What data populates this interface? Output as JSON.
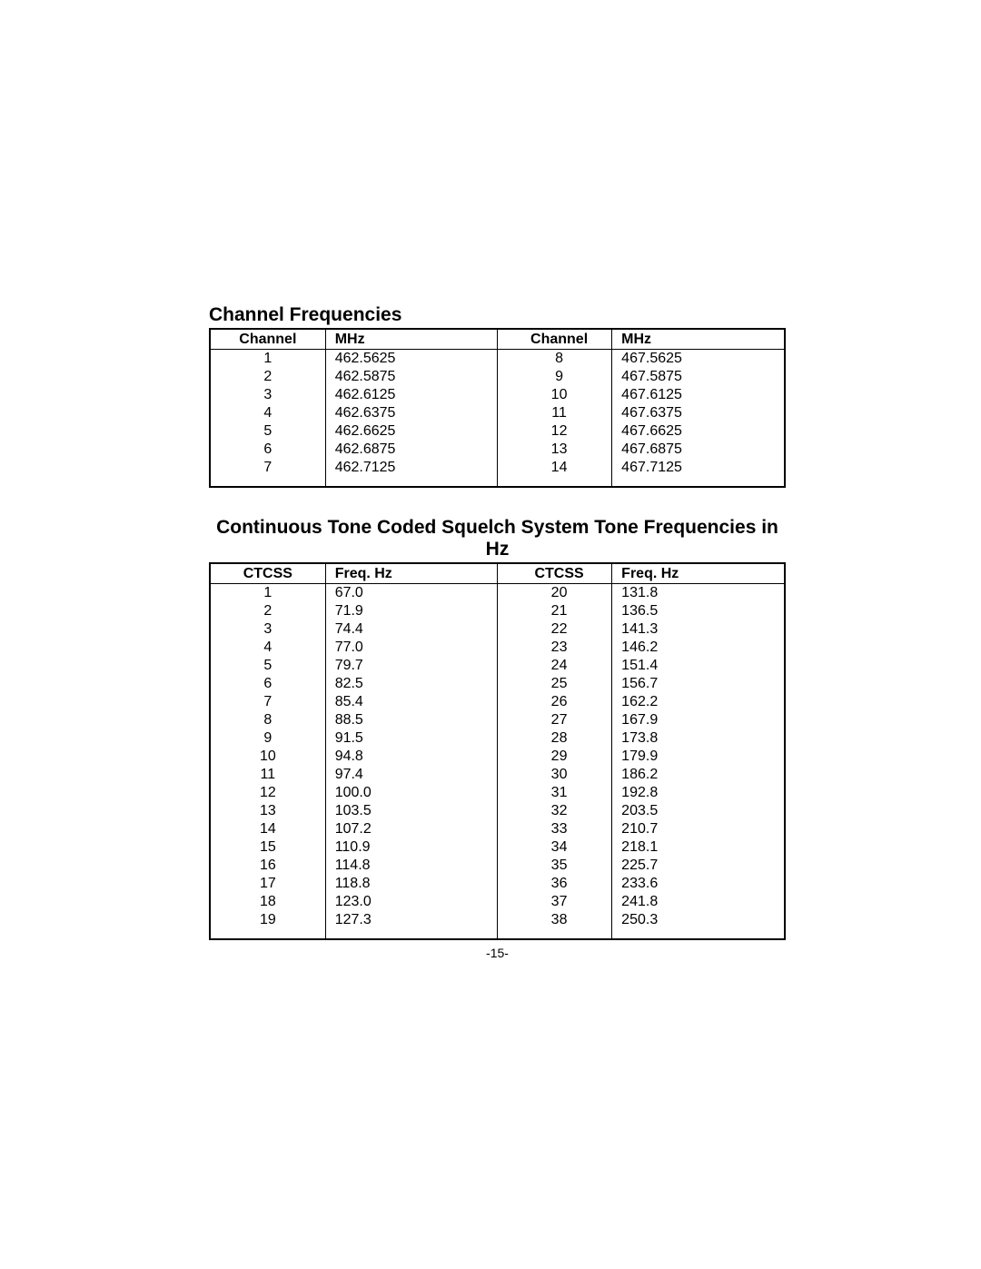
{
  "page_number": "-15-",
  "channel_freq": {
    "title": "Channel Frequencies",
    "columns": [
      "Channel",
      "MHz",
      "Channel",
      "MHz"
    ],
    "rows": [
      [
        "1",
        "462.5625",
        "8",
        "467.5625"
      ],
      [
        "2",
        "462.5875",
        "9",
        "467.5875"
      ],
      [
        "3",
        "462.6125",
        "10",
        "467.6125"
      ],
      [
        "4",
        "462.6375",
        "11",
        "467.6375"
      ],
      [
        "5",
        "462.6625",
        "12",
        "467.6625"
      ],
      [
        "6",
        "462.6875",
        "13",
        "467.6875"
      ],
      [
        "7",
        "462.7125",
        "14",
        "467.7125"
      ]
    ]
  },
  "ctcss": {
    "title": "Continuous Tone Coded Squelch System Tone Frequencies in Hz",
    "columns": [
      "CTCSS",
      "Freq. Hz",
      "CTCSS",
      "Freq. Hz"
    ],
    "rows": [
      [
        "1",
        "67.0",
        "20",
        "131.8"
      ],
      [
        "2",
        "71.9",
        "21",
        "136.5"
      ],
      [
        "3",
        "74.4",
        "22",
        "141.3"
      ],
      [
        "4",
        "77.0",
        "23",
        "146.2"
      ],
      [
        "5",
        "79.7",
        "24",
        "151.4"
      ],
      [
        "6",
        "82.5",
        "25",
        "156.7"
      ],
      [
        "7",
        "85.4",
        "26",
        "162.2"
      ],
      [
        "8",
        "88.5",
        "27",
        "167.9"
      ],
      [
        "9",
        "91.5",
        "28",
        "173.8"
      ],
      [
        "10",
        "94.8",
        "29",
        "179.9"
      ],
      [
        "11",
        "97.4",
        "30",
        "186.2"
      ],
      [
        "12",
        "100.0",
        "31",
        "192.8"
      ],
      [
        "13",
        "103.5",
        "32",
        "203.5"
      ],
      [
        "14",
        "107.2",
        "33",
        "210.7"
      ],
      [
        "15",
        "110.9",
        "34",
        "218.1"
      ],
      [
        "16",
        "114.8",
        "35",
        "225.7"
      ],
      [
        "17",
        "118.8",
        "36",
        "233.6"
      ],
      [
        "18",
        "123.0",
        "37",
        "241.8"
      ],
      [
        "19",
        "127.3",
        "38",
        "250.3"
      ]
    ]
  }
}
